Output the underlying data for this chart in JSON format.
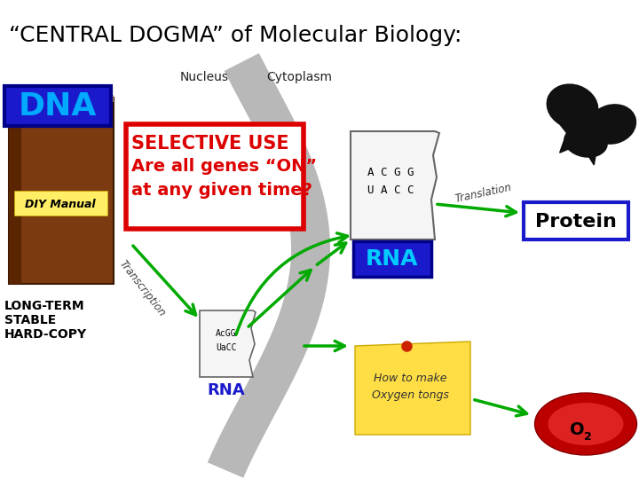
{
  "title": "“CENTRAL DOGMA” of Molecular Biology:",
  "title_fontsize": 18,
  "title_color": "#000000",
  "bg_color": "#ffffff",
  "selective_use_lines": [
    "SELECTIVE USE",
    "Are all genes “ON”",
    "at any given time?"
  ],
  "selective_box_color": "#dd0000",
  "selective_text_color": "#dd0000",
  "dna_label": "DNA",
  "dna_box_facecolor": "#1a1acc",
  "dna_text_color": "#00aaff",
  "book_label1": "LONG-TERM",
  "book_label2": "STABLE",
  "book_label3": "HARD-COPY",
  "diy_label": "DIY Manual",
  "nucleus_label": "Nucleus",
  "cytoplasm_label": "Cytoplasm",
  "transcription_label": "Transcription",
  "translation_label": "Translation",
  "rna_upper_label": "RNA",
  "rna_lower_label": "RNA",
  "rna_box_facecolor": "#1a1acc",
  "rna_text_color": "#1a1acc",
  "protein_label": "Protein",
  "protein_box_facecolor": "#ffffff",
  "protein_box_edgecolor": "#1a1acc",
  "protein_text_color": "#000000",
  "arrow_color": "#00aa00",
  "note_text1": "How to make",
  "note_text2": "Oxygen tongs",
  "note_bg": "#ffdd44",
  "o2_label": "O",
  "o2_sub": "2"
}
